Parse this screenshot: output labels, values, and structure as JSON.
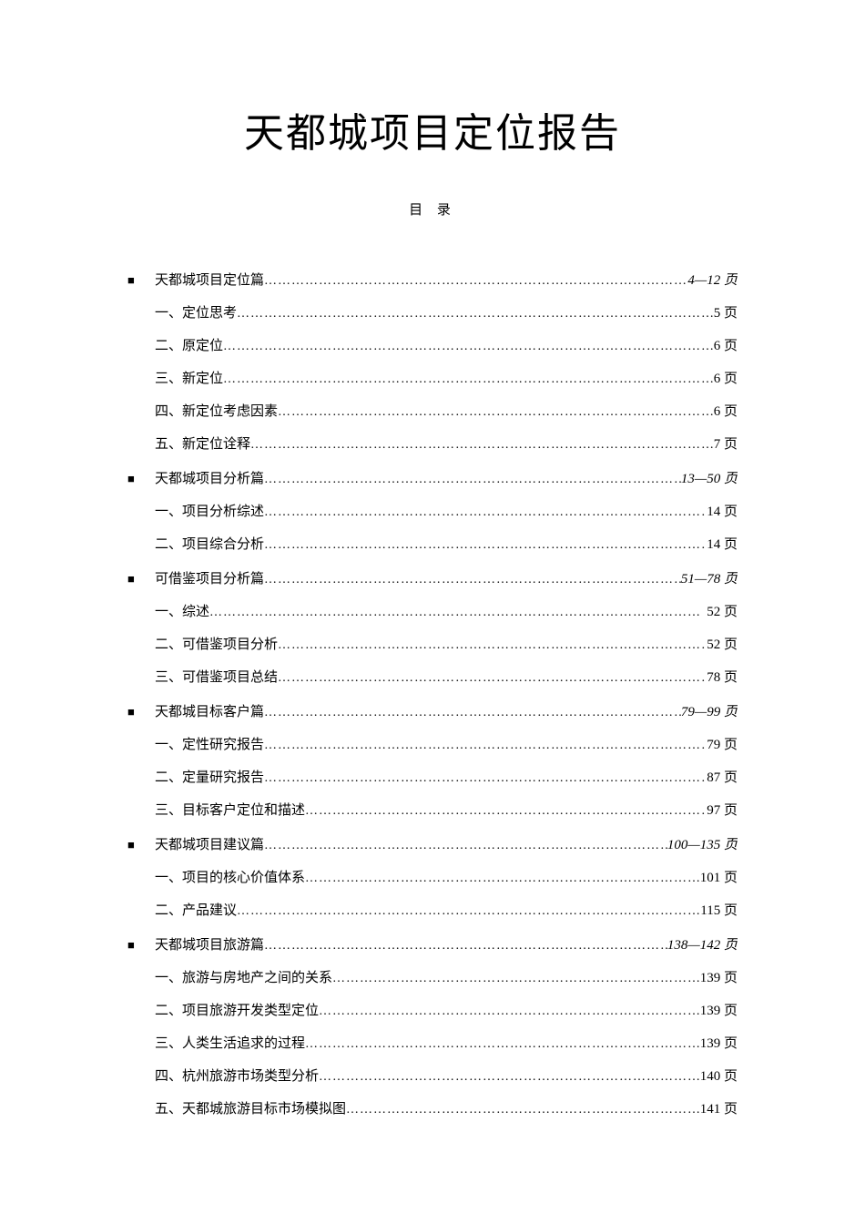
{
  "title": "天都城项目定位报告",
  "subtitle": "目 录",
  "sections": [
    {
      "heading": {
        "text": "天都城项目定位篇",
        "page": "4—12 页",
        "italic": true
      },
      "items": [
        {
          "text": "一、定位思考",
          "page": "5 页"
        },
        {
          "text": "二、原定位",
          "page": "6 页"
        },
        {
          "text": "三、新定位",
          "page": "6 页"
        },
        {
          "text": "四、新定位考虑因素",
          "page": "6 页"
        },
        {
          "text": "五、新定位诠释",
          "page": "7 页"
        }
      ]
    },
    {
      "heading": {
        "text": "天都城项目分析篇",
        "page": "13—50 页",
        "italic": true
      },
      "items": [
        {
          "text": "一、项目分析综述",
          "page": "14 页"
        },
        {
          "text": "二、项目综合分析",
          "page": "14 页"
        }
      ]
    },
    {
      "heading": {
        "text": "可借鉴项目分析篇",
        "page": "51—78 页",
        "italic": true
      },
      "items": [
        {
          "text": "一、综述",
          "page": "52 页"
        },
        {
          "text": "二、可借鉴项目分析",
          "page": "52 页"
        },
        {
          "text": "三、可借鉴项目总结",
          "page": "78 页"
        }
      ]
    },
    {
      "heading": {
        "text": "天都城目标客户篇",
        "page": "79—99 页",
        "italic": true
      },
      "items": [
        {
          "text": "一、定性研究报告",
          "page": "79 页"
        },
        {
          "text": "二、定量研究报告",
          "page": "87 页"
        },
        {
          "text": "三、目标客户定位和描述",
          "page": "97 页"
        }
      ]
    },
    {
      "heading": {
        "text": "天都城项目建议篇",
        "page": "100—135 页",
        "italic": true
      },
      "items": [
        {
          "text": "一、项目的核心价值体系",
          "page": "101 页"
        },
        {
          "text": "二、产品建议",
          "page": "115 页"
        }
      ]
    },
    {
      "heading": {
        "text": "天都城项目旅游篇",
        "page": "138—142 页",
        "italic": true
      },
      "items": [
        {
          "text": "一、旅游与房地产之间的关系",
          "page": "139 页"
        },
        {
          "text": "二、项目旅游开发类型定位",
          "page": "139 页"
        },
        {
          "text": "三、人类生活追求的过程",
          "page": "139 页"
        },
        {
          "text": "四、杭州旅游市场类型分析",
          "page": "140 页"
        },
        {
          "text": "五、天都城旅游目标市场模拟图",
          "page": "141 页"
        }
      ]
    }
  ],
  "style": {
    "title_fontsize": 44,
    "body_fontsize": 15,
    "line_height": 2.4,
    "text_color": "#000000",
    "bg_color": "#ffffff"
  }
}
